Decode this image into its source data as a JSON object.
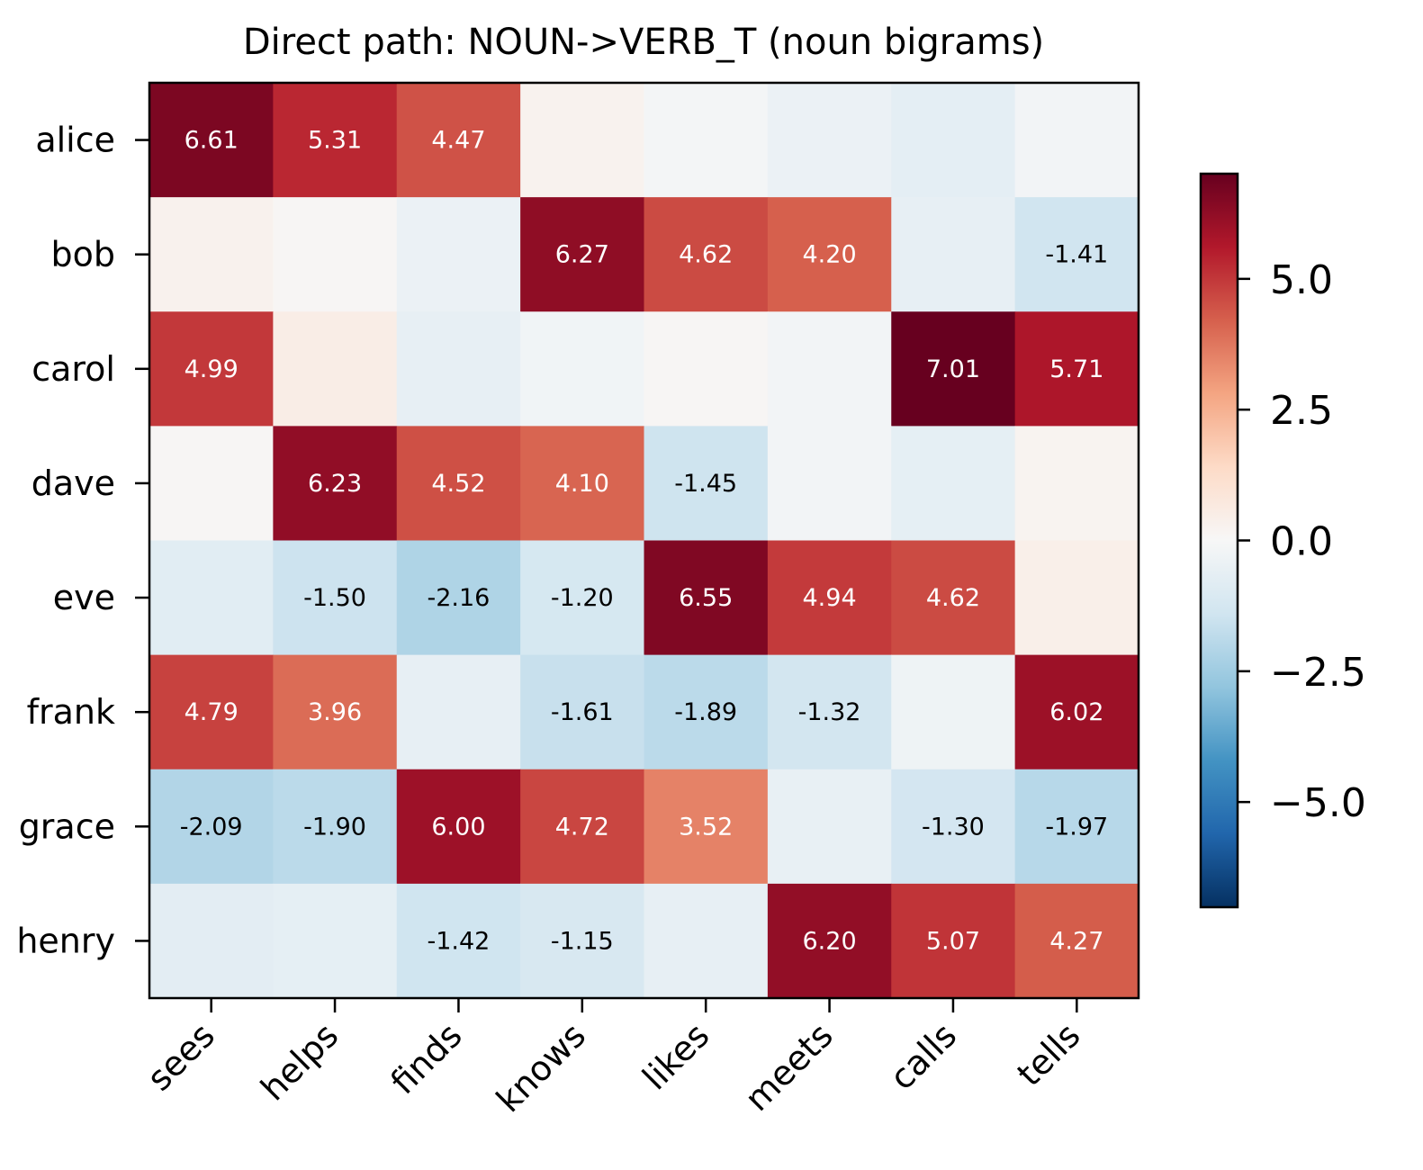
{
  "chart_data": {
    "type": "heatmap",
    "title": "Direct path: NOUN->VERB_T (noun bigrams)",
    "rows": [
      "alice",
      "bob",
      "carol",
      "dave",
      "eve",
      "frank",
      "grace",
      "henry"
    ],
    "columns": [
      "sees",
      "helps",
      "finds",
      "knows",
      "likes",
      "meets",
      "calls",
      "tells"
    ],
    "values": [
      [
        6.61,
        5.31,
        4.47,
        0.25,
        -0.15,
        -0.45,
        -0.7,
        -0.2
      ],
      [
        0.3,
        0.1,
        -0.45,
        6.27,
        4.62,
        4.2,
        -0.6,
        -1.41
      ],
      [
        4.99,
        0.5,
        -0.6,
        -0.25,
        0.1,
        -0.2,
        7.01,
        5.71
      ],
      [
        0.1,
        6.23,
        4.52,
        4.1,
        -1.45,
        -0.2,
        -0.65,
        0.2
      ],
      [
        -0.8,
        -1.5,
        -2.16,
        -1.2,
        6.55,
        4.94,
        4.62,
        0.4
      ],
      [
        4.79,
        3.96,
        -0.6,
        -1.61,
        -1.89,
        -1.32,
        -0.35,
        6.02
      ],
      [
        -2.09,
        -1.9,
        6.0,
        4.72,
        3.52,
        -0.55,
        -1.3,
        -1.97
      ],
      [
        -0.75,
        -0.65,
        -1.42,
        -1.15,
        -0.6,
        6.2,
        5.07,
        4.27
      ]
    ],
    "value_labels": [
      [
        "6.61",
        "5.31",
        "4.47",
        "",
        "",
        "",
        "",
        ""
      ],
      [
        "",
        "",
        "",
        "6.27",
        "4.62",
        "4.20",
        "",
        "-1.41"
      ],
      [
        "4.99",
        "",
        "",
        "",
        "",
        "",
        "7.01",
        "5.71"
      ],
      [
        "",
        "6.23",
        "4.52",
        "4.10",
        "-1.45",
        "",
        "",
        ""
      ],
      [
        "",
        "-1.50",
        "-2.16",
        "-1.20",
        "6.55",
        "4.94",
        "4.62",
        ""
      ],
      [
        "4.79",
        "3.96",
        "",
        "-1.61",
        "-1.89",
        "-1.32",
        "",
        "6.02"
      ],
      [
        "-2.09",
        "-1.90",
        "6.00",
        "4.72",
        "3.52",
        "",
        "-1.30",
        "-1.97"
      ],
      [
        "",
        "",
        "-1.42",
        "-1.15",
        "",
        "6.20",
        "5.07",
        "4.27"
      ]
    ],
    "colormap": "RdBu_r",
    "vmin": -7.01,
    "vmax": 7.01,
    "colorbar_ticks": [
      5.0,
      2.5,
      0.0,
      -2.5,
      -5.0
    ],
    "colorbar_tick_labels": [
      "5.0",
      "2.5",
      "0.0",
      "−2.5",
      "−5.0"
    ],
    "grid": false
  }
}
